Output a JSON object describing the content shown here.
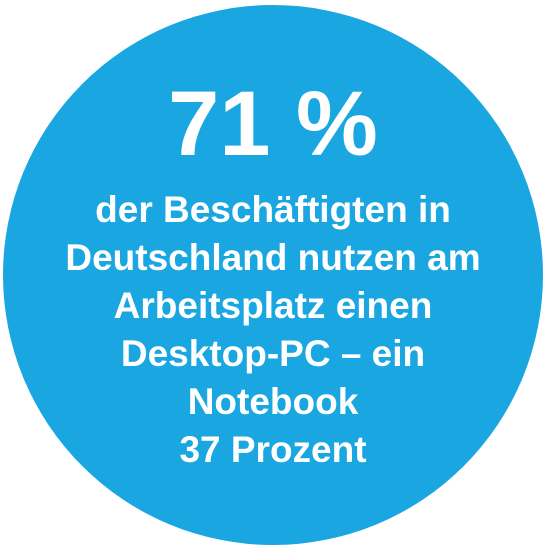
{
  "headline": "71 %",
  "lines": [
    "der Beschäftigten in",
    "Deutschland nutzen am",
    "Arbeitsplatz einen",
    "Desktop-PC – ein",
    "Notebook",
    "37 Prozent"
  ]
}
